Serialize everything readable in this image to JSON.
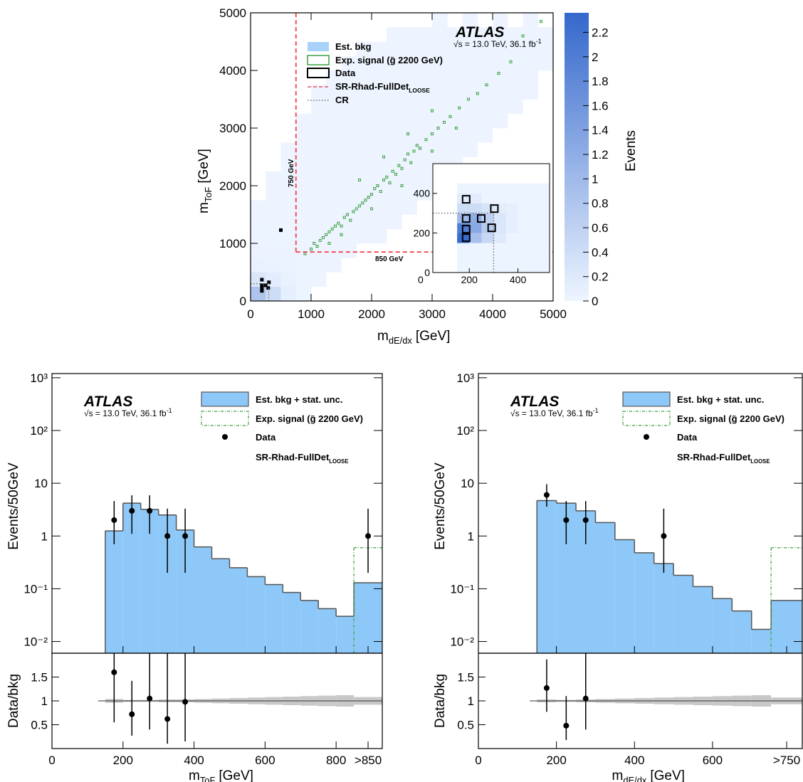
{
  "chart_data": [
    {
      "type": "heatmap2d",
      "atlas": "ATLAS",
      "energy": "√s = 13.0 TeV, 36.1 fb",
      "energy_sup": "-1",
      "xlabel": {
        "main": "m",
        "sub": "dE/dx",
        "unit": "[GeV]"
      },
      "ylabel": {
        "main": "m",
        "sub": "ToF",
        "unit": "[GeV]"
      },
      "xlim": [
        0,
        5000
      ],
      "xticks": [
        0,
        1000,
        2000,
        3000,
        4000,
        5000
      ],
      "ylim": [
        0,
        5000
      ],
      "yticks": [
        0,
        1000,
        2000,
        3000,
        4000,
        5000
      ],
      "zlim": [
        0,
        2.36
      ],
      "zticks": [
        0,
        0.2,
        0.4,
        0.6,
        0.8,
        1,
        1.2,
        1.4,
        1.6,
        1.8,
        2,
        2.2
      ],
      "zlabel": "Events",
      "colors": {
        "zlow": "#eef5ff",
        "zhigh": "#3468cc",
        "signal": "#3aa040",
        "data": "#000000",
        "sr": "#f0505a",
        "cr": "#777777",
        "legend_bkg": "#a9d2fb"
      },
      "legend": [
        {
          "name": "Est. bkg"
        },
        {
          "name": "Exp. signal (g̃ 2200 GeV)"
        },
        {
          "name": "Data"
        },
        {
          "name": "SR-Rhad-FullDet",
          "sub": "LOOSE"
        },
        {
          "name": "CR"
        }
      ],
      "cuts": {
        "x": 750,
        "y": 850,
        "x_label": "750 GeV",
        "y_label": "850 GeV"
      },
      "cr": 300,
      "bkg": {
        "x": [
          125,
          375,
          625,
          875,
          1125,
          1375,
          1625,
          1875,
          2125,
          2375,
          2625,
          2875,
          3125,
          3375,
          3625,
          3875,
          4125,
          4375,
          4625,
          4875
        ],
        "y": [
          125,
          375,
          625,
          875,
          1125,
          1375,
          1625,
          1875,
          2125,
          2375,
          2625,
          2875,
          3125,
          3375,
          3625,
          3875,
          4125,
          4375,
          4625,
          4875
        ],
        "z": [
          [
            0.8,
            0.4,
            0.1,
            0.02,
            0,
            0,
            0,
            0,
            0,
            0,
            0,
            0,
            0,
            0,
            0,
            0,
            0,
            0,
            0,
            0
          ],
          [
            0.25,
            0.15,
            0.06,
            0.02,
            0.01,
            0,
            0,
            0,
            0,
            0,
            0,
            0,
            0,
            0,
            0,
            0,
            0,
            0,
            0,
            0
          ],
          [
            0.06,
            0.05,
            0.04,
            0.02,
            0.01,
            0.01,
            0,
            0,
            0,
            0,
            0,
            0,
            0,
            0,
            0,
            0,
            0,
            0,
            0,
            0
          ],
          [
            0.03,
            0.03,
            0.03,
            0.02,
            0.01,
            0.01,
            0.01,
            0,
            0,
            0,
            0,
            0,
            0,
            0,
            0,
            0,
            0,
            0,
            0,
            0
          ],
          [
            0.02,
            0.02,
            0.02,
            0.02,
            0.01,
            0.01,
            0.01,
            0.01,
            0.01,
            0,
            0,
            0,
            0,
            0,
            0,
            0,
            0,
            0,
            0,
            0
          ],
          [
            0.01,
            0.01,
            0.01,
            0.01,
            0.01,
            0.01,
            0.01,
            0.01,
            0.01,
            0.01,
            0,
            0,
            0,
            0,
            0,
            0,
            0,
            0,
            0,
            0
          ],
          [
            0.01,
            0.01,
            0.01,
            0.01,
            0.01,
            0.01,
            0.01,
            0.01,
            0.01,
            0.01,
            0.01,
            0,
            0,
            0,
            0,
            0,
            0,
            0,
            0,
            0
          ],
          [
            0,
            0.01,
            0.01,
            0.01,
            0.01,
            0.01,
            0.01,
            0.01,
            0.01,
            0.01,
            0.01,
            0.01,
            0,
            0,
            0,
            0,
            0,
            0,
            0,
            0
          ],
          [
            0,
            0.01,
            0.01,
            0.01,
            0.01,
            0.01,
            0.01,
            0.01,
            0.01,
            0.01,
            0.01,
            0.01,
            0.01,
            0,
            0,
            0,
            0,
            0,
            0,
            0
          ],
          [
            0,
            0,
            0.01,
            0.01,
            0.01,
            0.01,
            0.01,
            0.01,
            0.01,
            0.01,
            0.01,
            0.01,
            0.01,
            0.01,
            0,
            0,
            0,
            0,
            0,
            0
          ],
          [
            0,
            0,
            0.01,
            0.01,
            0.01,
            0.01,
            0.01,
            0.01,
            0.01,
            0.01,
            0.01,
            0.01,
            0.01,
            0.01,
            0.01,
            0,
            0,
            0,
            0,
            0
          ],
          [
            0,
            0,
            0,
            0.01,
            0.01,
            0.01,
            0.01,
            0.01,
            0.01,
            0.01,
            0.01,
            0.01,
            0.01,
            0.01,
            0.01,
            0.01,
            0,
            0,
            0,
            0
          ],
          [
            0,
            0,
            0,
            0.01,
            0.01,
            0.01,
            0.01,
            0.01,
            0.01,
            0.01,
            0.01,
            0.01,
            0.01,
            0.01,
            0.01,
            0.01,
            0.01,
            0,
            0,
            0
          ],
          [
            0,
            0,
            0,
            0,
            0.01,
            0.01,
            0.01,
            0.01,
            0.01,
            0.01,
            0.01,
            0.01,
            0.01,
            0.01,
            0.01,
            0.01,
            0.01,
            0.01,
            0,
            0
          ],
          [
            0,
            0,
            0,
            0,
            0.01,
            0.01,
            0.01,
            0.01,
            0.01,
            0.01,
            0.01,
            0.01,
            0.01,
            0.01,
            0.01,
            0.01,
            0.01,
            0.01,
            0.01,
            0
          ],
          [
            0,
            0,
            0,
            0,
            0,
            0.01,
            0.01,
            0.01,
            0.01,
            0.01,
            0.01,
            0.01,
            0.01,
            0.01,
            0.01,
            0.01,
            0.01,
            0.01,
            0.01,
            0
          ],
          [
            0,
            0,
            0,
            0,
            0,
            0,
            0.01,
            0.01,
            0.01,
            0.01,
            0.01,
            0.01,
            0.01,
            0.01,
            0.01,
            0.01,
            0.01,
            0.01,
            0.01,
            0.01
          ],
          [
            0,
            0,
            0,
            0,
            0,
            0,
            0,
            0.01,
            0.01,
            0.01,
            0.01,
            0.01,
            0.01,
            0.01,
            0.01,
            0.01,
            0.01,
            0.01,
            0.01,
            0.01
          ],
          [
            0,
            0,
            0,
            0,
            0,
            0,
            0,
            0,
            0,
            0.01,
            0.01,
            0.01,
            0.01,
            0.01,
            0.01,
            0.01,
            0.01,
            0.01,
            0.01,
            0.01
          ],
          [
            0,
            0,
            0,
            0,
            0,
            0,
            0,
            0,
            0,
            0,
            0,
            0,
            0.01,
            0,
            0.01,
            0,
            0.01,
            0,
            0.01,
            0
          ]
        ]
      },
      "signal": {
        "x": [
          900,
          1000,
          1050,
          1100,
          1150,
          1200,
          1250,
          1300,
          1350,
          1400,
          1450,
          1500,
          1550,
          1600,
          1650,
          1700,
          1750,
          1800,
          1850,
          1900,
          1950,
          2000,
          2050,
          2100,
          2150,
          2200,
          2250,
          2300,
          2350,
          2400,
          2450,
          2500,
          2550,
          2600,
          2650,
          2700,
          2750,
          2800,
          2900,
          3000,
          3100,
          3200,
          3300,
          3450,
          3600,
          3750,
          3900,
          4100,
          4300,
          1800,
          2200,
          2600,
          3000,
          1500,
          2000,
          2500,
          3000,
          3400,
          1300,
          4500,
          4800
        ],
        "y": [
          820,
          900,
          1000,
          950,
          1050,
          1100,
          1150,
          1200,
          1250,
          1300,
          1350,
          1300,
          1450,
          1500,
          1400,
          1550,
          1600,
          1650,
          1700,
          1750,
          1800,
          1850,
          1950,
          2000,
          1900,
          2100,
          2150,
          2050,
          2250,
          2200,
          2350,
          2300,
          2450,
          2550,
          2400,
          2600,
          2700,
          2650,
          2800,
          2900,
          3000,
          3100,
          3200,
          3350,
          3500,
          3600,
          3750,
          3950,
          4150,
          2100,
          2500,
          2900,
          3300,
          1150,
          1600,
          2000,
          2600,
          3000,
          1000,
          4600,
          4850
        ]
      },
      "data": {
        "x": [
          187,
          187,
          249,
          303,
          292,
          187,
          187,
          500
        ],
        "y": [
          370,
          273,
          273,
          323,
          226,
          219,
          176,
          1230
        ]
      },
      "inset": {
        "xlim": [
          50,
          530
        ],
        "ylim": [
          0,
          550
        ],
        "xticks": [
          0,
          200,
          400
        ],
        "yticks": [
          0,
          200,
          400
        ],
        "bkg": {
          "x": [
            175,
            175,
            225,
            175,
            225,
            275,
            275,
            225,
            275,
            175,
            225,
            275,
            325,
            325,
            325,
            175,
            225,
            325,
            375,
            375,
            375
          ],
          "y": [
            175,
            225,
            225,
            275,
            275,
            225,
            275,
            175,
            175,
            325,
            325,
            325,
            225,
            275,
            175,
            375,
            375,
            325,
            225,
            275,
            325
          ],
          "z": [
            2.3,
            2.0,
            1.3,
            1.0,
            1.2,
            0.7,
            0.6,
            0.9,
            0.5,
            0.4,
            0.4,
            0.3,
            0.25,
            0.25,
            0.2,
            0.15,
            0.15,
            0.15,
            0.1,
            0.1,
            0.1
          ]
        }
      }
    },
    {
      "type": "hist_ratio",
      "atlas": "ATLAS",
      "energy": "√s = 13.0 TeV, 36.1 fb",
      "energy_sup": "-1",
      "xlabel": {
        "main": "m",
        "sub": "ToF",
        "unit": "[GeV]"
      },
      "ylabel": "Events/50GeV",
      "ratio_ylabel": "Data/bkg",
      "xlim": [
        0,
        930
      ],
      "xticks": [
        0,
        200,
        400,
        600,
        800,
        {
          "value": 890,
          "label": ">850"
        }
      ],
      "ylim": [
        0.006,
        1200
      ],
      "log": true,
      "yticks": [
        {
          "value": 0.01,
          "label": "10⁻²"
        },
        {
          "value": 0.1,
          "label": "10⁻¹"
        },
        1,
        10,
        {
          "value": 100,
          "label": "10²"
        },
        {
          "value": 1000,
          "label": "10³"
        }
      ],
      "ratio_ylim": [
        0,
        2
      ],
      "ratio_yticks": [
        0.5,
        1,
        1.5
      ],
      "colors": {
        "bkg": "#8ec8f8",
        "outline": "#555555",
        "signal": "#3aa040",
        "data": "#000000",
        "band": "#c8c8c8"
      },
      "legend": [
        {
          "name": "Est. bkg + stat. unc."
        },
        {
          "name": "Exp. signal (g̃ 2200 GeV)"
        },
        {
          "name": "Data"
        },
        {
          "name": "SR-Rhad-FullDet",
          "sub": "LOOSE"
        }
      ],
      "bins": [
        150,
        200,
        250,
        300,
        350,
        400,
        450,
        500,
        550,
        600,
        650,
        700,
        750,
        800,
        850,
        930
      ],
      "bkg": [
        1.25,
        4.2,
        3.2,
        2.5,
        1.3,
        0.62,
        0.37,
        0.25,
        0.17,
        0.12,
        0.085,
        0.06,
        0.042,
        0.03,
        0.13
      ],
      "bkg_rel_err": [
        0.04,
        0.02,
        0.02,
        0.03,
        0.03,
        0.04,
        0.05,
        0.06,
        0.07,
        0.08,
        0.09,
        0.1,
        0.11,
        0.12,
        0.08
      ],
      "signal": [
        0,
        0,
        0,
        0,
        0,
        0,
        0,
        0,
        0,
        0,
        0,
        0,
        0,
        0,
        0.6
      ],
      "data": {
        "x": [
          175,
          225,
          275,
          325,
          375,
          890
        ],
        "values": [
          2,
          3,
          3,
          1,
          1,
          1
        ],
        "err_low": [
          1.3,
          1.9,
          1.9,
          0.8,
          0.8,
          0.8
        ],
        "err_high": [
          2.6,
          2.9,
          2.9,
          2.3,
          2.3,
          2.3
        ]
      },
      "ratio": {
        "x": [
          175,
          225,
          275,
          325,
          375
        ],
        "values": [
          1.6,
          0.72,
          1.05,
          0.62,
          0.98
        ],
        "err_low": [
          1.05,
          0.45,
          0.65,
          0.52,
          0.83
        ],
        "err_high": [
          1.2,
          0.7,
          1.0,
          1.4,
          2.3
        ]
      }
    },
    {
      "type": "hist_ratio",
      "atlas": "ATLAS",
      "energy": "√s = 13.0 TeV, 36.1 fb",
      "energy_sup": "-1",
      "xlabel": {
        "main": "m",
        "sub": "dE/dx",
        "unit": "[GeV]"
      },
      "ylabel": "Events/50GeV",
      "ratio_ylabel": "Data/bkg",
      "xlim": [
        0,
        830
      ],
      "xticks": [
        0,
        200,
        400,
        600,
        {
          "value": 790,
          "label": ">750"
        }
      ],
      "ylim": [
        0.006,
        1200
      ],
      "log": true,
      "yticks": [
        {
          "value": 0.01,
          "label": "10⁻²"
        },
        {
          "value": 0.1,
          "label": "10⁻¹"
        },
        1,
        10,
        {
          "value": 100,
          "label": "10²"
        },
        {
          "value": 1000,
          "label": "10³"
        }
      ],
      "ratio_ylim": [
        0,
        2
      ],
      "ratio_yticks": [
        0.5,
        1,
        1.5
      ],
      "colors": {
        "bkg": "#8ec8f8",
        "outline": "#555555",
        "signal": "#3aa040",
        "data": "#000000",
        "band": "#c8c8c8"
      },
      "legend": [
        {
          "name": "Est. bkg + stat. unc."
        },
        {
          "name": "Exp. signal (g̃ 2200 GeV)"
        },
        {
          "name": "Data"
        },
        {
          "name": "SR-Rhad-FullDet",
          "sub": "LOOSE"
        }
      ],
      "bins": [
        150,
        200,
        250,
        300,
        350,
        400,
        450,
        500,
        550,
        600,
        650,
        700,
        750,
        830
      ],
      "bkg": [
        4.7,
        4.2,
        3.0,
        1.8,
        0.85,
        0.48,
        0.3,
        0.18,
        0.11,
        0.065,
        0.038,
        0.017,
        0.06
      ],
      "bkg_rel_err": [
        0.03,
        0.02,
        0.03,
        0.04,
        0.05,
        0.06,
        0.07,
        0.08,
        0.09,
        0.1,
        0.11,
        0.12,
        0.07
      ],
      "signal": [
        0,
        0,
        0,
        0,
        0,
        0,
        0,
        0,
        0,
        0,
        0,
        0,
        0.6
      ],
      "data": {
        "x": [
          175,
          225,
          275,
          475
        ],
        "values": [
          6,
          2,
          2,
          1
        ],
        "err_low": [
          2.4,
          1.3,
          1.3,
          0.8
        ],
        "err_high": [
          3.6,
          2.6,
          2.6,
          2.3
        ]
      },
      "ratio": {
        "x": [
          175,
          225,
          275
        ],
        "values": [
          1.27,
          0.48,
          1.05
        ],
        "err_low": [
          0.5,
          0.3,
          0.65
        ],
        "err_high": [
          0.6,
          0.62,
          1.3
        ]
      }
    }
  ]
}
